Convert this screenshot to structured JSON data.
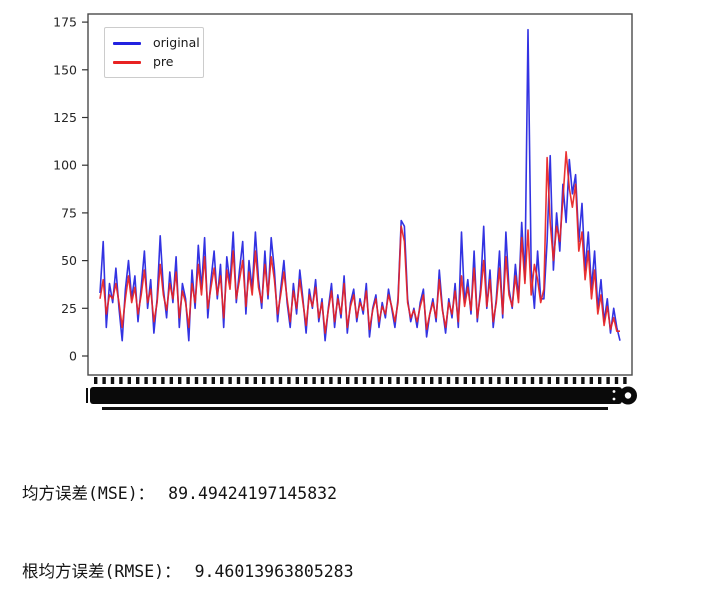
{
  "figure": {
    "frame_color": "#4a4a4a",
    "tick_color": "#333333",
    "label_color": "#262626",
    "xaxis_smear_color": "#0a0a0a"
  },
  "chart_data": {
    "type": "line",
    "title": "",
    "xlabel": "",
    "ylabel": "",
    "ylim": [
      -8,
      180
    ],
    "yticks": [
      0,
      25,
      50,
      75,
      100,
      125,
      150,
      175
    ],
    "grid": false,
    "legend_position": "upper left",
    "x_tick_labels_legible": false,
    "x_tick_labels_note": "dense overlapping rotated tick labels rendered as a solid black bar",
    "series": [
      {
        "name": "original",
        "color": "#2222e0",
        "values": [
          33,
          60,
          15,
          38,
          28,
          46,
          25,
          8,
          35,
          50,
          30,
          42,
          18,
          36,
          55,
          25,
          40,
          12,
          30,
          63,
          35,
          20,
          44,
          28,
          52,
          15,
          38,
          30,
          8,
          45,
          25,
          58,
          35,
          62,
          20,
          40,
          55,
          30,
          48,
          15,
          52,
          38,
          65,
          28,
          45,
          60,
          22,
          50,
          35,
          65,
          40,
          25,
          55,
          30,
          62,
          45,
          18,
          35,
          50,
          28,
          15,
          38,
          22,
          45,
          30,
          12,
          35,
          25,
          40,
          18,
          30,
          8,
          25,
          38,
          15,
          32,
          20,
          42,
          12,
          28,
          35,
          18,
          30,
          22,
          38,
          10,
          25,
          32,
          15,
          28,
          20,
          35,
          25,
          15,
          30,
          71,
          68,
          30,
          18,
          25,
          15,
          28,
          35,
          10,
          22,
          30,
          18,
          45,
          25,
          12,
          30,
          20,
          38,
          15,
          65,
          28,
          40,
          22,
          55,
          18,
          35,
          68,
          25,
          45,
          15,
          30,
          55,
          20,
          65,
          35,
          25,
          48,
          30,
          70,
          40,
          171,
          45,
          25,
          55,
          30,
          30,
          60,
          105,
          45,
          75,
          55,
          90,
          70,
          103,
          85,
          95,
          60,
          80,
          45,
          65,
          35,
          55,
          25,
          40,
          18,
          30,
          12,
          25,
          15,
          8
        ]
      },
      {
        "name": "pre",
        "color": "#e82222",
        "values": [
          30,
          40,
          22,
          32,
          30,
          38,
          28,
          15,
          30,
          42,
          28,
          36,
          22,
          32,
          45,
          28,
          35,
          18,
          28,
          48,
          32,
          24,
          38,
          30,
          44,
          20,
          34,
          28,
          15,
          38,
          28,
          48,
          32,
          52,
          25,
          36,
          46,
          32,
          42,
          20,
          45,
          35,
          55,
          30,
          40,
          50,
          26,
          44,
          32,
          55,
          36,
          28,
          48,
          32,
          52,
          40,
          22,
          32,
          44,
          30,
          18,
          34,
          25,
          40,
          28,
          16,
          32,
          26,
          36,
          20,
          28,
          12,
          24,
          34,
          18,
          30,
          22,
          38,
          15,
          26,
          32,
          20,
          28,
          24,
          34,
          14,
          24,
          30,
          18,
          26,
          22,
          32,
          26,
          18,
          28,
          68,
          60,
          28,
          20,
          24,
          18,
          26,
          32,
          14,
          22,
          28,
          20,
          40,
          24,
          15,
          28,
          22,
          34,
          18,
          42,
          26,
          36,
          24,
          46,
          20,
          32,
          50,
          26,
          40,
          18,
          28,
          46,
          22,
          52,
          32,
          26,
          42,
          28,
          62,
          38,
          66,
          32,
          48,
          40,
          28,
          35,
          104,
          70,
          50,
          68,
          60,
          82,
          107,
          88,
          78,
          90,
          55,
          65,
          40,
          55,
          30,
          45,
          22,
          32,
          16,
          26,
          14,
          20,
          13,
          13
        ]
      }
    ]
  },
  "stats": {
    "mse_label": "均方误差(MSE)：",
    "mse_value": "89.49424197145832",
    "rmse_label": "根均方误差(RMSE)：",
    "rmse_value": "9.46013963805283"
  }
}
